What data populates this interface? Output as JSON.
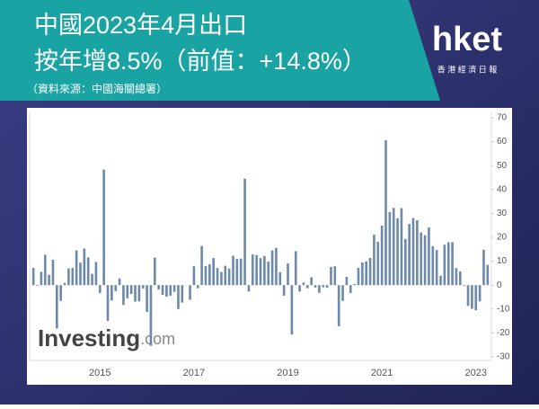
{
  "header": {
    "title_line1": "中國2023年4月出口",
    "title_line2": "按年增8.5%（前值：+14.8%）",
    "source": "（資料來源：中國海關總署）"
  },
  "logo": {
    "name": "hket",
    "subtitle": "香 港 經 濟 日 報"
  },
  "watermark": {
    "brand": "Investing",
    "suffix": ".com"
  },
  "chart_data": {
    "type": "bar",
    "color": "#6d89ab",
    "categories": [
      null,
      null,
      null,
      null,
      null,
      null,
      null,
      null,
      null,
      null,
      null,
      null,
      null,
      null,
      null,
      null,
      null,
      "2015",
      null,
      null,
      null,
      null,
      null,
      null,
      null,
      null,
      null,
      null,
      null,
      null,
      null,
      null,
      null,
      null,
      null,
      null,
      null,
      null,
      null,
      null,
      null,
      "2017",
      null,
      null,
      null,
      null,
      null,
      null,
      null,
      null,
      null,
      null,
      null,
      null,
      null,
      null,
      null,
      null,
      null,
      null,
      null,
      null,
      null,
      null,
      null,
      "2019",
      null,
      null,
      null,
      null,
      null,
      null,
      null,
      null,
      null,
      null,
      null,
      null,
      null,
      null,
      null,
      null,
      null,
      null,
      null,
      null,
      null,
      null,
      null,
      "2021",
      null,
      null,
      null,
      null,
      null,
      null,
      null,
      null,
      null,
      null,
      null,
      null,
      null,
      null,
      null,
      null,
      null,
      null,
      null,
      null,
      null,
      null,
      null,
      "2023",
      null,
      null,
      null
    ],
    "values": [
      7.2,
      -0.3,
      5.6,
      12.7,
      4.3,
      10.6,
      -18.1,
      -6.6,
      0.9,
      7.0,
      7.2,
      14.5,
      9.4,
      15.3,
      11.6,
      4.7,
      9.7,
      -3.3,
      48.3,
      -15.0,
      -6.4,
      -2.5,
      2.8,
      -8.3,
      -5.5,
      -3.7,
      -6.9,
      -6.8,
      -1.4,
      -11.2,
      -25.4,
      11.5,
      -1.8,
      -4.1,
      -4.8,
      -4.4,
      -2.8,
      -10.0,
      -7.3,
      0.1,
      -6.1,
      7.9,
      -1.3,
      16.4,
      8.0,
      8.7,
      11.3,
      7.2,
      5.5,
      8.1,
      6.9,
      12.3,
      10.9,
      11.1,
      44.5,
      -2.7,
      12.9,
      12.6,
      11.3,
      12.2,
      9.8,
      14.5,
      15.6,
      5.4,
      -4.4,
      9.1,
      -20.7,
      14.2,
      -2.7,
      1.1,
      -1.3,
      3.3,
      -1.0,
      -3.2,
      -0.9,
      -1.1,
      7.6,
      7.9,
      -17.2,
      -6.6,
      3.5,
      -3.3,
      0.5,
      7.2,
      9.5,
      9.9,
      11.4,
      21.1,
      18.1,
      24.9,
      60.6,
      30.6,
      32.3,
      27.9,
      32.2,
      19.3,
      25.6,
      28.1,
      27.1,
      22.0,
      20.9,
      24.1,
      16.3,
      14.7,
      3.9,
      16.9,
      17.9,
      18.0,
      7.1,
      5.7,
      -0.3,
      -8.7,
      -9.9,
      -10.5,
      -6.8,
      14.8,
      8.5
    ],
    "ylim": [
      -30,
      70
    ],
    "yticks": [
      -30,
      -20,
      -10,
      0,
      10,
      20,
      30,
      40,
      50,
      60,
      70
    ],
    "grid": false
  }
}
